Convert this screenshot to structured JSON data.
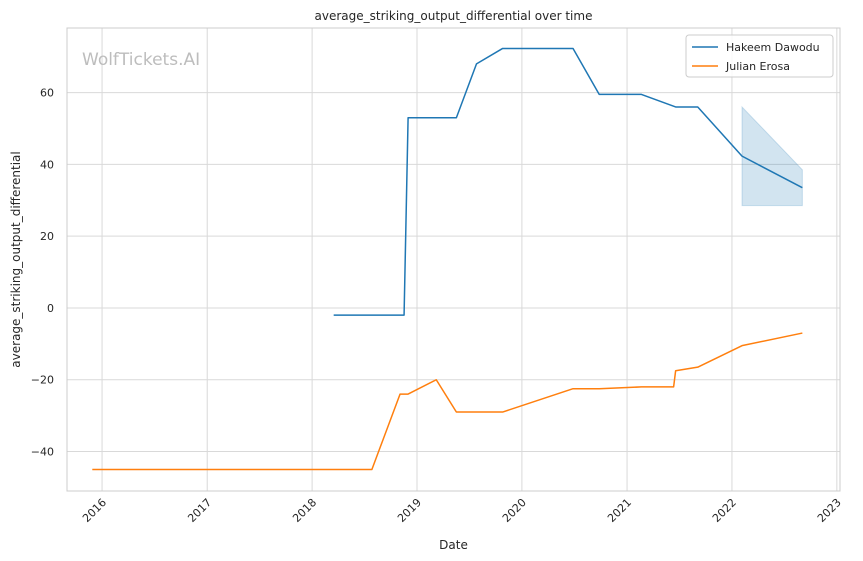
{
  "chart_data": {
    "type": "line",
    "title": "average_striking_output_differential over time",
    "xlabel": "Date",
    "ylabel": "average_striking_output_differential",
    "watermark": "WolfTickets.AI",
    "grid": true,
    "legend_position": "top-right",
    "xlim": [
      "2015-09-01",
      "2023-01-12"
    ],
    "ylim": [
      -51,
      78
    ],
    "x_ticks": [
      "2016",
      "2017",
      "2018",
      "2019",
      "2020",
      "2021",
      "2022",
      "2023"
    ],
    "y_ticks": [
      -40,
      -20,
      0,
      20,
      40,
      60
    ],
    "series": [
      {
        "name": "Hakeem Dawodu",
        "color": "#1f77b4",
        "x": [
          "2018-03-17",
          "2018-11-17",
          "2018-12-01",
          "2019-05-18",
          "2019-07-27",
          "2019-10-26",
          "2020-06-27",
          "2020-09-26",
          "2021-02-20",
          "2021-06-19",
          "2021-09-04",
          "2022-02-05",
          "2022-09-03"
        ],
        "values": [
          -2,
          -2,
          53,
          53,
          68,
          72.3,
          72.3,
          59.5,
          59.5,
          56,
          56,
          42.3,
          33.5
        ],
        "band": {
          "x": [
            "2022-02-05",
            "2022-09-03"
          ],
          "upper": [
            56,
            38.5
          ],
          "lower": [
            28.5,
            28.5
          ]
        }
      },
      {
        "name": "Julian Erosa",
        "color": "#ff7f0e",
        "x": [
          "2015-11-28",
          "2018-07-28",
          "2018-11-03",
          "2018-12-01",
          "2019-03-09",
          "2019-05-18",
          "2019-10-26",
          "2020-06-27",
          "2020-09-26",
          "2021-02-20",
          "2021-06-12",
          "2021-06-19",
          "2021-09-04",
          "2022-02-05",
          "2022-09-03"
        ],
        "values": [
          -45,
          -45,
          -24,
          -24,
          -20,
          -29,
          -29,
          -22.5,
          -22.5,
          -22,
          -22,
          -17.5,
          -16.5,
          -10.5,
          -7
        ]
      }
    ]
  }
}
